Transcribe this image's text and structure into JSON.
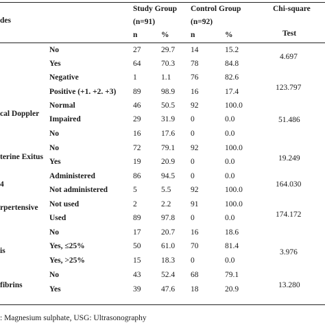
{
  "header": {
    "col_variable": "des",
    "study_group": "Study Group",
    "study_n": "(n=91)",
    "control_group": "Control Group",
    "control_n": "(n=92)",
    "chi_square": "Chi-square",
    "test": "Test",
    "n": "n",
    "pct": "%"
  },
  "groups": [
    {
      "label": "",
      "chi": "4.697"
    },
    {
      "label": "",
      "chi": "123.797"
    },
    {
      "label": "cal Doppler",
      "chi": "51.486"
    },
    {
      "label": "terine Exitus",
      "chi": "19.249"
    },
    {
      "label": "4",
      "chi": "164.030"
    },
    {
      "label": "rpertensive",
      "chi": "174.172"
    },
    {
      "label": "is",
      "chi": "3.976"
    },
    {
      "label": "fibrins",
      "chi": "13.280"
    }
  ],
  "rows": [
    {
      "cat": "No",
      "sn": "27",
      "sp": "29.7",
      "cn": "14",
      "cp": "15.2"
    },
    {
      "cat": "Yes",
      "sn": "64",
      "sp": "70.3",
      "cn": "78",
      "cp": "84.8"
    },
    {
      "cat": "Negative",
      "sn": "1",
      "sp": "1.1",
      "cn": "76",
      "cp": "82.6"
    },
    {
      "cat": "Positive (+1. +2. +3)",
      "sn": "89",
      "sp": "98.9",
      "cn": "16",
      "cp": "17.4"
    },
    {
      "cat": "Normal",
      "sn": "46",
      "sp": "50.5",
      "cn": "92",
      "cp": "100.0"
    },
    {
      "cat": "Impaired",
      "sn": "29",
      "sp": "31.9",
      "cn": "0",
      "cp": "0.0"
    },
    {
      "cat": "No",
      "sn": "16",
      "sp": "17.6",
      "cn": "0",
      "cp": "0.0"
    },
    {
      "cat": "No",
      "sn": "72",
      "sp": "79.1",
      "cn": "92",
      "cp": "100.0"
    },
    {
      "cat": "Yes",
      "sn": "19",
      "sp": "20.9",
      "cn": "0",
      "cp": "0.0"
    },
    {
      "cat": "Administered",
      "sn": "86",
      "sp": "94.5",
      "cn": "0",
      "cp": "0.0"
    },
    {
      "cat": "Not administered",
      "sn": "5",
      "sp": "5.5",
      "cn": "92",
      "cp": "100.0"
    },
    {
      "cat": "Not used",
      "sn": "2",
      "sp": "2.2",
      "cn": "91",
      "cp": "100.0"
    },
    {
      "cat": "Used",
      "sn": "89",
      "sp": "97.8",
      "cn": "0",
      "cp": "0.0"
    },
    {
      "cat": "No",
      "sn": "17",
      "sp": "20.7",
      "cn": "16",
      "cp": "18.6"
    },
    {
      "cat": "Yes, ≤25%",
      "sn": "50",
      "sp": "61.0",
      "cn": "70",
      "cp": "81.4"
    },
    {
      "cat": "Yes, >25%",
      "sn": "15",
      "sp": "18.3",
      "cn": "0",
      "cp": "0.0"
    },
    {
      "cat": "No",
      "sn": "43",
      "sp": "52.4",
      "cn": "68",
      "cp": "79.1"
    },
    {
      "cat": "Yes",
      "sn": "39",
      "sp": "47.6",
      "cn": "18",
      "cp": "20.9"
    }
  ],
  "footnote": ": Magnesium sulphate, USG: Ultrasonography"
}
